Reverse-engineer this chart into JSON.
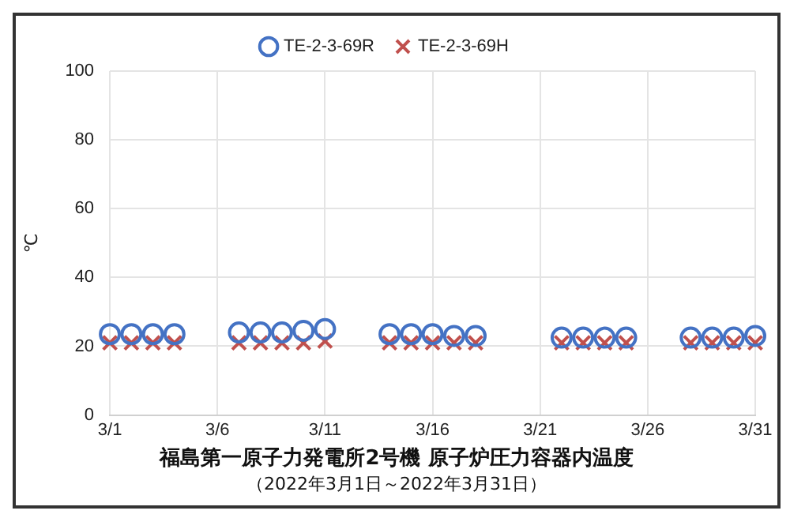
{
  "chart_data": {
    "type": "scatter",
    "title": "福島第一原子力発電所2号機  原子炉圧力容器内温度",
    "subtitle": "（2022年3月1日～2022年3月31日）",
    "ylabel": "℃",
    "xlim": [
      "--03-01",
      "--03-31"
    ],
    "xticks": [
      {
        "value": "--03-01",
        "label": "3/1"
      },
      {
        "value": "--03-06",
        "label": "3/6"
      },
      {
        "value": "--03-11",
        "label": "3/11"
      },
      {
        "value": "--03-16",
        "label": "3/16"
      },
      {
        "value": "--03-21",
        "label": "3/21"
      },
      {
        "value": "--03-26",
        "label": "3/26"
      },
      {
        "value": "--03-31",
        "label": "3/31"
      }
    ],
    "ylim": [
      0,
      100
    ],
    "yticks": [
      0,
      20,
      40,
      60,
      80,
      100
    ],
    "grid": true,
    "legend": "top",
    "x": [
      "--03-01",
      "--03-02",
      "--03-03",
      "--03-04",
      "--03-07",
      "--03-08",
      "--03-09",
      "--03-10",
      "--03-11",
      "--03-14",
      "--03-15",
      "--03-16",
      "--03-17",
      "--03-18",
      "--03-22",
      "--03-23",
      "--03-24",
      "--03-25",
      "--03-28",
      "--03-29",
      "--03-30",
      "--03-31"
    ],
    "series": [
      {
        "name": "TE-2-3-69R",
        "color": "#4472c4",
        "marker": "circle",
        "values": [
          23.5,
          23.5,
          23.5,
          23.5,
          24,
          24,
          24,
          24.5,
          25,
          23.5,
          23.5,
          23.5,
          23,
          23,
          22.5,
          22.5,
          22.5,
          22.5,
          22.5,
          22.5,
          22.5,
          23
        ]
      },
      {
        "name": "TE-2-3-69H",
        "color": "#c0504d",
        "marker": "cross",
        "values": [
          21,
          21,
          21,
          21,
          21,
          21,
          21,
          21,
          21.5,
          21,
          21,
          21,
          21,
          21,
          21,
          21,
          21,
          21,
          21,
          21,
          21,
          21
        ]
      }
    ]
  }
}
